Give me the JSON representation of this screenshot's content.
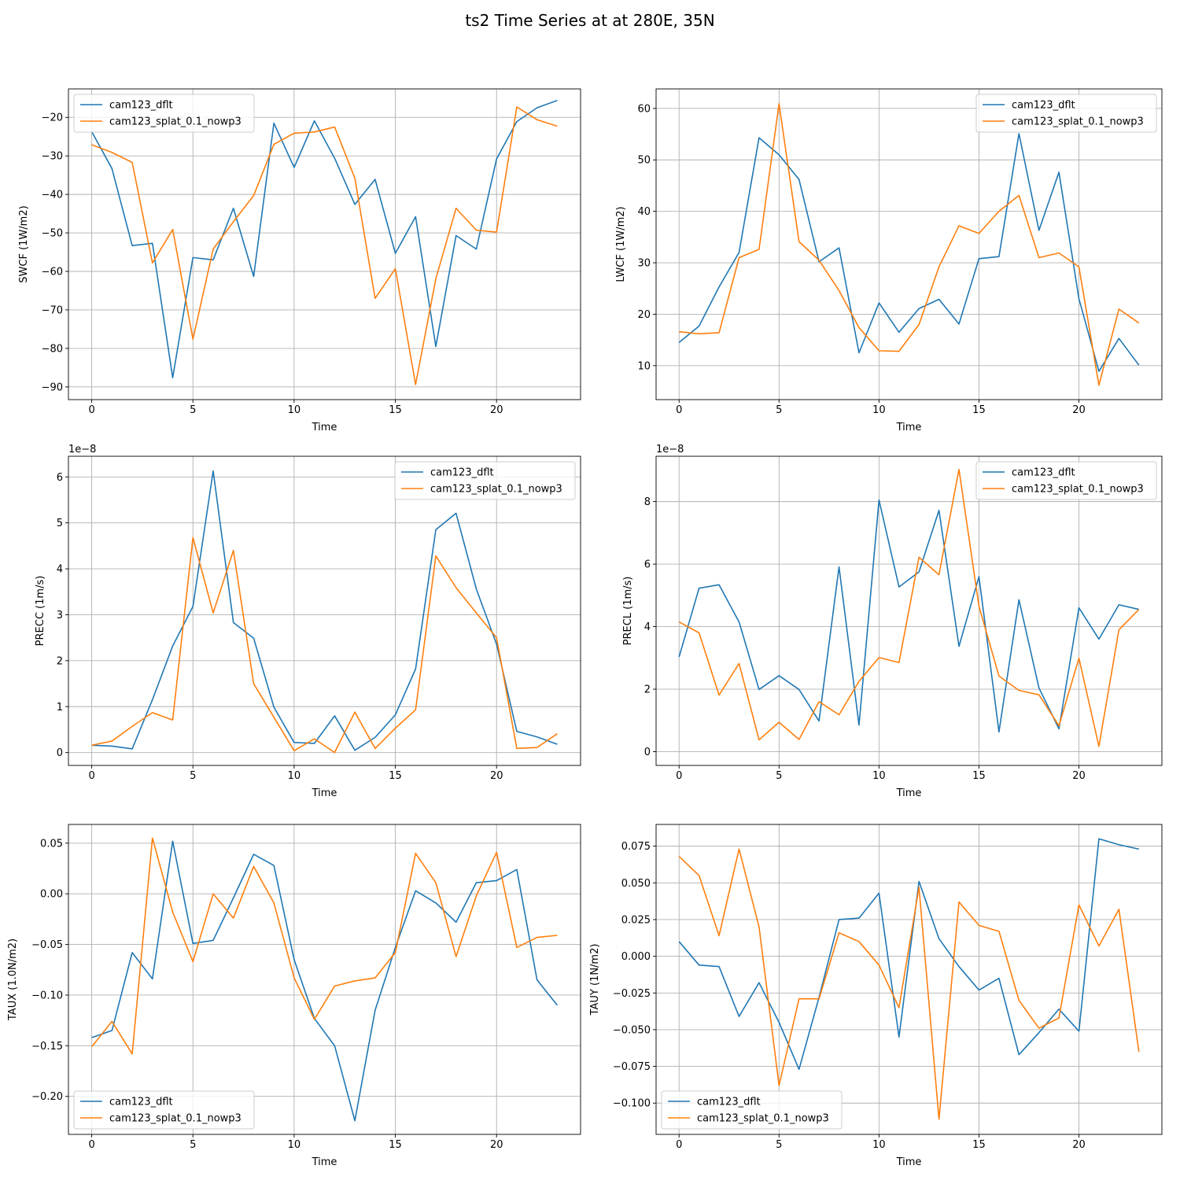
{
  "figure_title": "ts2 Time Series at at 280E, 35N",
  "colors": {
    "series_0": "#1f77b4",
    "series_1": "#ff7f0e",
    "grid": "#b0b0b0"
  },
  "chart_data": [
    {
      "type": "line",
      "id": "swcf",
      "xlabel": "Time",
      "ylabel": "SWCF (1W/m2)",
      "x": [
        0,
        1,
        2,
        3,
        4,
        5,
        6,
        7,
        8,
        9,
        10,
        11,
        12,
        13,
        14,
        15,
        16,
        17,
        18,
        19,
        20,
        21,
        22,
        23
      ],
      "xlim": [
        -1.15,
        24.15
      ],
      "ylim": [
        -93.3,
        -12.6
      ],
      "xticks": [
        0,
        5,
        10,
        15,
        20
      ],
      "yticks": [
        -90,
        -80,
        -70,
        -60,
        -50,
        -40,
        -30,
        -20
      ],
      "ytick_labels": [
        "−90",
        "−80",
        "−70",
        "−60",
        "−50",
        "−40",
        "−30",
        "−20"
      ],
      "offset_text": "",
      "legend": "top-left",
      "grid": true,
      "series": [
        {
          "name": "cam123_dflt",
          "values": [
            -23.7,
            -33.3,
            -53.3,
            -52.7,
            -87.6,
            -56.4,
            -57.0,
            -43.6,
            -61.3,
            -21.5,
            -33.0,
            -20.9,
            -30.6,
            -42.6,
            -36.1,
            -55.3,
            -45.8,
            -79.5,
            -50.7,
            -54.2,
            -30.8,
            -21.1,
            -17.5,
            -15.6
          ]
        },
        {
          "name": "cam123_splat_0.1_nowp3",
          "values": [
            -27.1,
            -29.1,
            -31.7,
            -57.8,
            -49.1,
            -77.6,
            -54.2,
            -47.1,
            -40.3,
            -27.0,
            -24.1,
            -23.8,
            -22.5,
            -35.8,
            -67.0,
            -59.3,
            -89.4,
            -61.9,
            -43.6,
            -49.3,
            -49.8,
            -17.3,
            -20.6,
            -22.3
          ]
        }
      ]
    },
    {
      "type": "line",
      "id": "lwcf",
      "xlabel": "Time",
      "ylabel": "LWCF (1W/m2)",
      "x": [
        0,
        1,
        2,
        3,
        4,
        5,
        6,
        7,
        8,
        9,
        10,
        11,
        12,
        13,
        14,
        15,
        16,
        17,
        18,
        19,
        20,
        21,
        22,
        23
      ],
      "xlim": [
        -1.15,
        24.15
      ],
      "ylim": [
        3.4,
        63.8
      ],
      "xticks": [
        0,
        5,
        10,
        15,
        20
      ],
      "yticks": [
        10,
        20,
        30,
        40,
        50,
        60
      ],
      "ytick_labels": [
        "10",
        "20",
        "30",
        "40",
        "50",
        "60"
      ],
      "offset_text": "",
      "legend": "top-right",
      "grid": true,
      "series": [
        {
          "name": "cam123_dflt",
          "values": [
            14.5,
            17.7,
            25.3,
            32.0,
            54.3,
            51.0,
            46.2,
            30.2,
            32.9,
            12.5,
            22.2,
            16.5,
            21.1,
            22.9,
            18.1,
            30.8,
            31.2,
            55.1,
            36.3,
            47.6,
            23.0,
            8.9,
            15.3,
            10.1
          ]
        },
        {
          "name": "cam123_splat_0.1_nowp3",
          "values": [
            16.6,
            16.2,
            16.4,
            31.0,
            32.6,
            60.9,
            34.1,
            30.5,
            24.6,
            17.4,
            12.9,
            12.8,
            18.0,
            29.2,
            37.2,
            35.7,
            40.0,
            43.1,
            31.0,
            31.9,
            29.2,
            6.2,
            21.0,
            18.3
          ]
        }
      ]
    },
    {
      "type": "line",
      "id": "precc",
      "xlabel": "Time",
      "ylabel": "PRECC (1m/s)",
      "x": [
        0,
        1,
        2,
        3,
        4,
        5,
        6,
        7,
        8,
        9,
        10,
        11,
        12,
        13,
        14,
        15,
        16,
        17,
        18,
        19,
        20,
        21,
        22,
        23
      ],
      "xlim": [
        -1.15,
        24.15
      ],
      "ylim": [
        -0.28,
        6.45
      ],
      "xticks": [
        0,
        5,
        10,
        15,
        20
      ],
      "yticks": [
        0,
        1,
        2,
        3,
        4,
        5,
        6
      ],
      "ytick_labels": [
        "0",
        "1",
        "2",
        "3",
        "4",
        "5",
        "6"
      ],
      "offset_text": "1e−8",
      "legend": "top-right",
      "grid": true,
      "series": [
        {
          "name": "cam123_dflt",
          "values": [
            0.16,
            0.14,
            0.08,
            1.15,
            2.32,
            3.18,
            6.13,
            2.83,
            2.49,
            0.99,
            0.22,
            0.2,
            0.8,
            0.05,
            0.33,
            0.82,
            1.82,
            4.85,
            5.21,
            3.56,
            2.36,
            0.46,
            0.34,
            0.18
          ]
        },
        {
          "name": "cam123_splat_0.1_nowp3",
          "values": [
            0.16,
            0.25,
            0.57,
            0.87,
            0.71,
            4.68,
            3.04,
            4.4,
            1.5,
            0.77,
            0.04,
            0.3,
            0.0,
            0.88,
            0.09,
            0.53,
            0.93,
            4.28,
            3.59,
            3.04,
            2.5,
            0.09,
            0.11,
            0.41
          ]
        }
      ]
    },
    {
      "type": "line",
      "id": "precl",
      "xlabel": "Time",
      "ylabel": "PRECL (1m/s)",
      "x": [
        0,
        1,
        2,
        3,
        4,
        5,
        6,
        7,
        8,
        9,
        10,
        11,
        12,
        13,
        14,
        15,
        16,
        17,
        18,
        19,
        20,
        21,
        22,
        23
      ],
      "xlim": [
        -1.15,
        24.15
      ],
      "ylim": [
        -0.44,
        9.45
      ],
      "xticks": [
        0,
        5,
        10,
        15,
        20
      ],
      "yticks": [
        0,
        2,
        4,
        6,
        8
      ],
      "ytick_labels": [
        "0",
        "2",
        "4",
        "6",
        "8"
      ],
      "offset_text": "1e−8",
      "legend": "top-right",
      "grid": true,
      "series": [
        {
          "name": "cam123_dflt",
          "values": [
            3.03,
            5.23,
            5.34,
            4.15,
            1.99,
            2.43,
            1.99,
            0.98,
            5.91,
            0.85,
            8.05,
            5.27,
            5.75,
            7.72,
            3.37,
            5.6,
            0.63,
            4.86,
            2.04,
            0.73,
            4.6,
            3.6,
            4.7,
            4.55
          ]
        },
        {
          "name": "cam123_splat_0.1_nowp3",
          "values": [
            4.15,
            3.8,
            1.81,
            2.82,
            0.38,
            0.94,
            0.39,
            1.6,
            1.18,
            2.25,
            3.01,
            2.85,
            6.22,
            5.66,
            9.03,
            4.65,
            2.42,
            1.96,
            1.82,
            0.83,
            2.99,
            0.17,
            3.9,
            4.55
          ]
        }
      ]
    },
    {
      "type": "line",
      "id": "taux",
      "xlabel": "Time",
      "ylabel": "TAUX (1.0N/m2)",
      "x": [
        0,
        1,
        2,
        3,
        4,
        5,
        6,
        7,
        8,
        9,
        10,
        11,
        12,
        13,
        14,
        15,
        16,
        17,
        18,
        19,
        20,
        21,
        22,
        23
      ],
      "xlim": [
        -1.15,
        24.15
      ],
      "ylim": [
        -0.2375,
        0.0685
      ],
      "xticks": [
        0,
        5,
        10,
        15,
        20
      ],
      "yticks": [
        -0.2,
        -0.15,
        -0.1,
        -0.05,
        0.0,
        0.05
      ],
      "ytick_labels": [
        "−0.20",
        "−0.15",
        "−0.10",
        "−0.05",
        "0.00",
        "0.05"
      ],
      "offset_text": "",
      "legend": "bottom-left",
      "grid": true,
      "series": [
        {
          "name": "cam123_dflt",
          "values": [
            -0.142,
            -0.135,
            -0.058,
            -0.084,
            0.052,
            -0.049,
            -0.046,
            -0.004,
            0.039,
            0.028,
            -0.065,
            -0.123,
            -0.15,
            -0.224,
            -0.115,
            -0.053,
            0.003,
            -0.009,
            -0.028,
            0.011,
            0.013,
            0.024,
            -0.085,
            -0.11
          ]
        },
        {
          "name": "cam123_splat_0.1_nowp3",
          "values": [
            -0.151,
            -0.126,
            -0.158,
            0.055,
            -0.018,
            -0.067,
            0.0,
            -0.024,
            0.027,
            -0.009,
            -0.083,
            -0.124,
            -0.091,
            -0.086,
            -0.083,
            -0.058,
            0.04,
            0.011,
            -0.062,
            -0.002,
            0.041,
            -0.053,
            -0.043,
            -0.041
          ]
        }
      ]
    },
    {
      "type": "line",
      "id": "tauy",
      "xlabel": "Time",
      "ylabel": "TAUY (1N/m2)",
      "x": [
        0,
        1,
        2,
        3,
        4,
        5,
        6,
        7,
        8,
        9,
        10,
        11,
        12,
        13,
        14,
        15,
        16,
        17,
        18,
        19,
        20,
        21,
        22,
        23
      ],
      "xlim": [
        -1.15,
        24.15
      ],
      "ylim": [
        -0.1213,
        0.0898
      ],
      "xticks": [
        0,
        5,
        10,
        15,
        20
      ],
      "yticks": [
        -0.1,
        -0.075,
        -0.05,
        -0.025,
        0.0,
        0.025,
        0.05,
        0.075
      ],
      "ytick_labels": [
        "−0.100",
        "−0.075",
        "−0.050",
        "−0.025",
        "0.000",
        "0.025",
        "0.050",
        "0.075"
      ],
      "offset_text": "",
      "legend": "bottom-left",
      "grid": true,
      "series": [
        {
          "name": "cam123_dflt",
          "values": [
            0.01,
            -0.006,
            -0.007,
            -0.041,
            -0.018,
            -0.045,
            -0.077,
            -0.028,
            0.025,
            0.026,
            0.043,
            -0.055,
            0.051,
            0.012,
            -0.007,
            -0.023,
            -0.015,
            -0.067,
            -0.052,
            -0.036,
            -0.051,
            0.08,
            0.076,
            0.073
          ]
        },
        {
          "name": "cam123_splat_0.1_nowp3",
          "values": [
            0.068,
            0.055,
            0.014,
            0.073,
            0.02,
            -0.088,
            -0.029,
            -0.029,
            0.016,
            0.01,
            -0.006,
            -0.035,
            0.047,
            -0.111,
            0.037,
            0.021,
            0.017,
            -0.03,
            -0.049,
            -0.042,
            0.035,
            0.007,
            0.032,
            -0.065
          ]
        }
      ]
    }
  ]
}
